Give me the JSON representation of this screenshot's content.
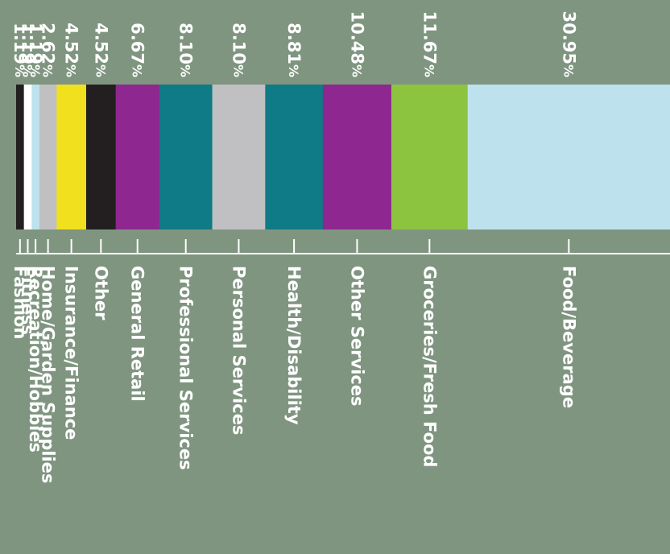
{
  "chart_data": {
    "type": "bar",
    "stacked": true,
    "orientation": "rotated-90",
    "title": "",
    "categories": [
      "Fashion",
      "Fitness",
      "Recreation/Hobbies",
      "Home/Garden Supplies",
      "Insurance/Finance",
      "Other",
      "General Retail",
      "Professional Services",
      "Personal Services",
      "Health/Disability",
      "Other Services",
      "Groceries/Fresh Food",
      "Food/Beverage"
    ],
    "values": [
      1.19,
      1.19,
      1.19,
      2.62,
      4.52,
      4.52,
      6.67,
      8.1,
      8.1,
      8.81,
      10.48,
      11.67,
      30.95
    ],
    "value_labels": [
      "1.19",
      "1.19",
      "1.19",
      "2.62",
      "4.52",
      "4.52",
      "6.67",
      "8.10",
      "8.10",
      "8.81",
      "10.48",
      "11.67",
      "30.95"
    ],
    "unit": "%",
    "colors": [
      "#231f20",
      "#ffffff",
      "#bde2ed",
      "#c0c0c3",
      "#f1e01e",
      "#231f20",
      "#8e278f",
      "#0f7b86",
      "#c0c0c3",
      "#0f7b86",
      "#8e278f",
      "#8cc43f",
      "#bde2ed"
    ],
    "background": "#7f9580",
    "axis_color": "#ffffff"
  }
}
